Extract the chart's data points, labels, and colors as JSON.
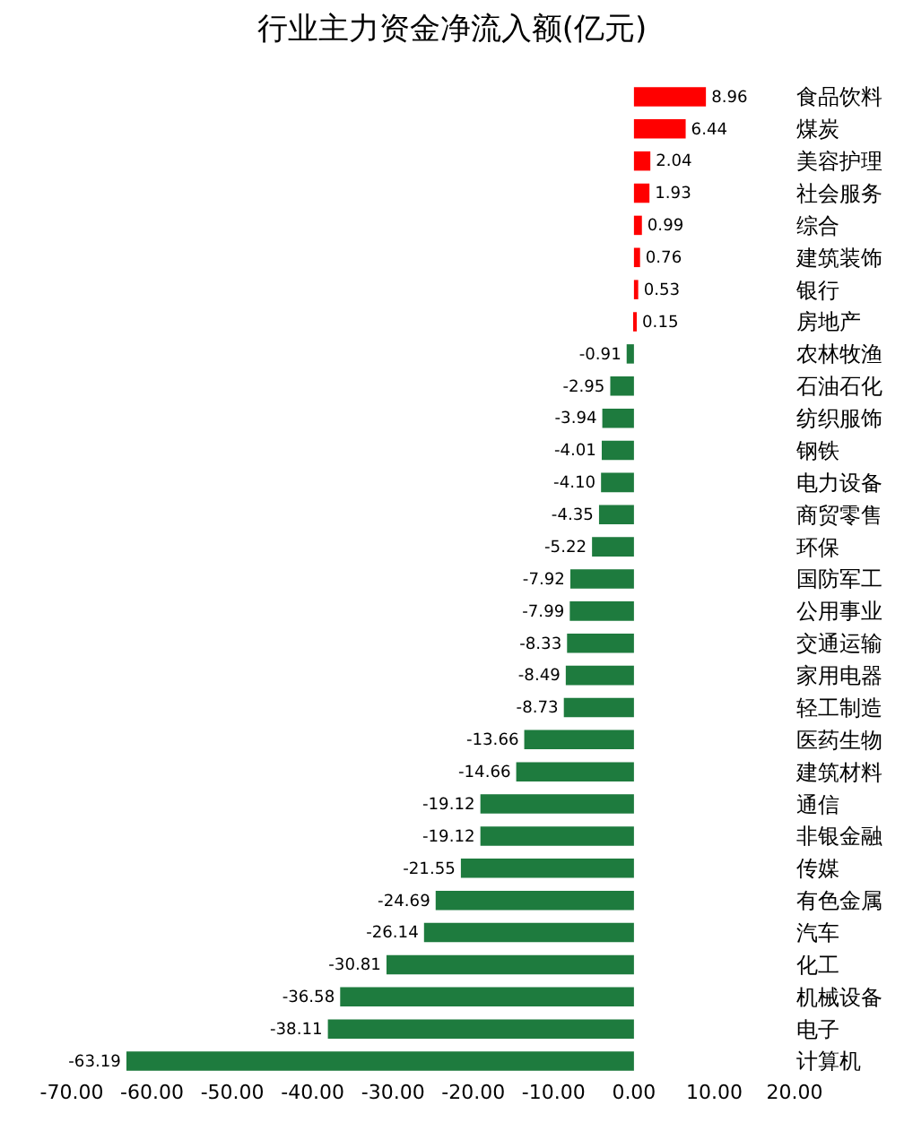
{
  "chart_data": {
    "type": "bar",
    "orientation": "horizontal",
    "title": "行业主力资金净流入额(亿元)",
    "categories": [
      "食品饮料",
      "煤炭",
      "美容护理",
      "社会服务",
      "综合",
      "建筑装饰",
      "银行",
      "房地产",
      "农林牧渔",
      "石油石化",
      "纺织服饰",
      "钢铁",
      "电力设备",
      "商贸零售",
      "环保",
      "国防军工",
      "公用事业",
      "交通运输",
      "家用电器",
      "轻工制造",
      "医药生物",
      "建筑材料",
      "通信",
      "非银金融",
      "传媒",
      "有色金属",
      "汽车",
      "化工",
      "机械设备",
      "电子",
      "计算机"
    ],
    "values": [
      8.96,
      6.44,
      2.04,
      1.93,
      0.99,
      0.76,
      0.53,
      0.15,
      -0.91,
      -2.95,
      -3.94,
      -4.01,
      -4.1,
      -4.35,
      -5.22,
      -7.92,
      -7.99,
      -8.33,
      -8.49,
      -8.73,
      -13.66,
      -14.66,
      -19.12,
      -19.12,
      -21.55,
      -24.69,
      -26.14,
      -30.81,
      -36.58,
      -38.11,
      -63.19
    ],
    "value_labels": [
      "8.96",
      "6.44",
      "2.04",
      "1.93",
      "0.99",
      "0.76",
      "0.53",
      "0.15",
      "-0.91",
      "-2.95",
      "-3.94",
      "-4.01",
      "-4.10",
      "-4.35",
      "-5.22",
      "-7.92",
      "-7.99",
      "-8.33",
      "-8.49",
      "-8.73",
      "-13.66",
      "-14.66",
      "-19.12",
      "-19.12",
      "-21.55",
      "-24.69",
      "-26.14",
      "-30.81",
      "-36.58",
      "-38.11",
      "-63.19"
    ],
    "colors": [
      "#ff0000",
      "#ff0000",
      "#ff0000",
      "#ff0000",
      "#ff0000",
      "#ff0000",
      "#ff0000",
      "#ff0000",
      "#1e7b3e",
      "#1e7b3e",
      "#1e7b3e",
      "#1e7b3e",
      "#1e7b3e",
      "#1e7b3e",
      "#1e7b3e",
      "#1e7b3e",
      "#1e7b3e",
      "#1e7b3e",
      "#1e7b3e",
      "#1e7b3e",
      "#1e7b3e",
      "#1e7b3e",
      "#1e7b3e",
      "#1e7b3e",
      "#1e7b3e",
      "#1e7b3e",
      "#1e7b3e",
      "#1e7b3e",
      "#1e7b3e",
      "#1e7b3e",
      "#1e7b3e"
    ],
    "xlim": [
      -70,
      20
    ],
    "xticks": [
      {
        "value": -70,
        "label": "-70.00"
      },
      {
        "value": -60,
        "label": "-60.00"
      },
      {
        "value": -50,
        "label": "-50.00"
      },
      {
        "value": -40,
        "label": "-40.00"
      },
      {
        "value": -30,
        "label": "-30.00"
      },
      {
        "value": -20,
        "label": "-20.00"
      },
      {
        "value": -10,
        "label": "-10.00"
      },
      {
        "value": 0,
        "label": "0.00"
      },
      {
        "value": 10,
        "label": "10.00"
      },
      {
        "value": 20,
        "label": "20.00"
      }
    ]
  }
}
